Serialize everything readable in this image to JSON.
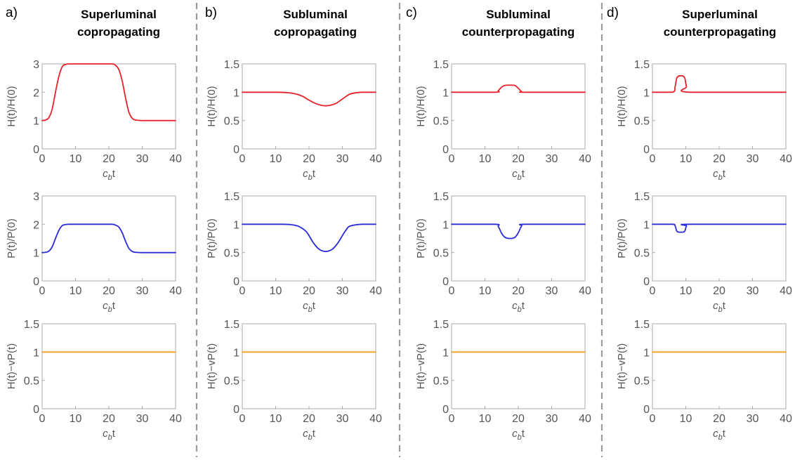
{
  "xlabel": {
    "c": "c",
    "b": "b",
    "t": "t"
  },
  "colors": {
    "H": "#e8212a",
    "P": "#2a2ad8",
    "C": "#f5a020",
    "frame": "#aaaaaa",
    "divider": "#999999"
  },
  "panels": [
    {
      "label": "a)",
      "title_line1": "Superluminal",
      "title_line2": "copropagating",
      "charts": [
        {
          "type": "line",
          "ylabel": "H(t)/H(0)",
          "xlim": [
            0,
            40
          ],
          "ylim": [
            0,
            3
          ],
          "yticks": [
            0,
            1,
            2,
            3
          ],
          "ytick_labels": [
            "0",
            "1",
            "2",
            "3"
          ],
          "xticks": [
            0,
            10,
            20,
            30,
            40
          ],
          "xtick_labels": [
            "0",
            "10",
            "20",
            "30",
            "40"
          ],
          "series": [
            {
              "color": "H",
              "x": [
                0,
                1,
                2,
                3,
                4,
                5,
                6,
                7,
                8,
                10,
                14,
                18,
                21,
                22,
                23,
                24,
                25,
                26,
                27,
                28,
                30,
                35,
                40
              ],
              "y": [
                1.0,
                1.02,
                1.1,
                1.4,
                2.0,
                2.55,
                2.9,
                2.98,
                3.0,
                3.0,
                3.0,
                3.0,
                3.0,
                2.95,
                2.8,
                2.4,
                1.8,
                1.3,
                1.08,
                1.02,
                1.0,
                1.0,
                1.0
              ]
            }
          ]
        },
        {
          "type": "line",
          "ylabel": "P(t)/P(0)",
          "xlim": [
            0,
            40
          ],
          "ylim": [
            0,
            3
          ],
          "yticks": [
            0,
            1,
            2,
            3
          ],
          "ytick_labels": [
            "0",
            "1",
            "2",
            "3"
          ],
          "xticks": [
            0,
            10,
            20,
            30,
            40
          ],
          "xtick_labels": [
            "0",
            "10",
            "20",
            "30",
            "40"
          ],
          "series": [
            {
              "color": "P",
              "x": [
                0,
                1,
                2,
                3,
                4,
                5,
                6,
                7,
                8,
                10,
                14,
                18,
                21,
                22,
                23,
                24,
                25,
                26,
                27,
                28,
                30,
                35,
                40
              ],
              "y": [
                1.0,
                1.01,
                1.05,
                1.2,
                1.5,
                1.78,
                1.95,
                1.99,
                2.0,
                2.0,
                2.0,
                2.0,
                2.0,
                1.97,
                1.9,
                1.7,
                1.4,
                1.15,
                1.04,
                1.01,
                1.0,
                1.0,
                1.0
              ]
            }
          ]
        },
        {
          "type": "line",
          "ylabel": "H(t)−vP(t)",
          "xlim": [
            0,
            40
          ],
          "ylim": [
            0,
            1.5
          ],
          "yticks": [
            0,
            0.5,
            1,
            1.5
          ],
          "ytick_labels": [
            "0",
            "0.5",
            "1",
            "1.5"
          ],
          "xticks": [
            0,
            10,
            20,
            30,
            40
          ],
          "xtick_labels": [
            "0",
            "10",
            "20",
            "30",
            "40"
          ],
          "series": [
            {
              "color": "C",
              "x": [
                0,
                40
              ],
              "y": [
                1,
                1
              ]
            }
          ]
        }
      ]
    },
    {
      "label": "b)",
      "title_line1": "Subluminal",
      "title_line2": "copropagating",
      "charts": [
        {
          "type": "line",
          "ylabel": "H(t)/H(0)",
          "xlim": [
            0,
            40
          ],
          "ylim": [
            0,
            1.5
          ],
          "yticks": [
            0,
            0.5,
            1,
            1.5
          ],
          "ytick_labels": [
            "0",
            "0.5",
            "1",
            "1.5"
          ],
          "xticks": [
            0,
            10,
            20,
            30,
            40
          ],
          "xtick_labels": [
            "0",
            "10",
            "20",
            "30",
            "40"
          ],
          "series": [
            {
              "color": "H",
              "x": [
                0,
                10,
                14,
                16,
                18,
                20,
                22,
                24,
                25,
                26,
                28,
                30,
                32,
                34,
                36,
                40
              ],
              "y": [
                1.0,
                1.0,
                0.99,
                0.97,
                0.93,
                0.86,
                0.8,
                0.765,
                0.76,
                0.765,
                0.8,
                0.88,
                0.96,
                0.99,
                1.0,
                1.0
              ]
            }
          ]
        },
        {
          "type": "line",
          "ylabel": "P(t)/P(0)",
          "xlim": [
            0,
            40
          ],
          "ylim": [
            0,
            1.5
          ],
          "yticks": [
            0,
            0.5,
            1,
            1.5
          ],
          "ytick_labels": [
            "0",
            "0.5",
            "1",
            "1.5"
          ],
          "xticks": [
            0,
            10,
            20,
            30,
            40
          ],
          "xtick_labels": [
            "0",
            "10",
            "20",
            "30",
            "40"
          ],
          "series": [
            {
              "color": "P",
              "x": [
                0,
                12,
                15,
                17,
                19,
                20,
                21,
                22,
                23,
                24,
                25,
                26,
                27,
                28,
                29,
                30,
                31,
                32,
                34,
                36,
                40
              ],
              "y": [
                1.0,
                1.0,
                0.99,
                0.96,
                0.88,
                0.8,
                0.7,
                0.62,
                0.56,
                0.53,
                0.52,
                0.53,
                0.56,
                0.62,
                0.7,
                0.8,
                0.89,
                0.96,
                0.99,
                1.0,
                1.0
              ]
            }
          ]
        },
        {
          "type": "line",
          "ylabel": "H(t)−vP(t)",
          "xlim": [
            0,
            40
          ],
          "ylim": [
            0,
            1.5
          ],
          "yticks": [
            0,
            0.5,
            1,
            1.5
          ],
          "ytick_labels": [
            "0",
            "0.5",
            "1",
            "1.5"
          ],
          "xticks": [
            0,
            10,
            20,
            30,
            40
          ],
          "xtick_labels": [
            "0",
            "10",
            "20",
            "30",
            "40"
          ],
          "series": [
            {
              "color": "C",
              "x": [
                0,
                40
              ],
              "y": [
                1,
                1
              ]
            }
          ]
        }
      ]
    },
    {
      "label": "c)",
      "title_line1": "Subluminal",
      "title_line2": "counterpropagating",
      "charts": [
        {
          "type": "line",
          "ylabel": "H(t)/H(0)",
          "xlim": [
            0,
            40
          ],
          "ylim": [
            0,
            1.5
          ],
          "yticks": [
            0,
            0.5,
            1,
            1.5
          ],
          "ytick_labels": [
            "0",
            "0.5",
            "1",
            "1.5"
          ],
          "xticks": [
            0,
            10,
            20,
            30,
            40
          ],
          "xtick_labels": [
            "0",
            "10",
            "20",
            "30",
            "40"
          ],
          "series": [
            {
              "color": "H",
              "x": [
                0,
                13,
                14,
                15,
                16,
                17,
                18,
                19,
                20,
                21,
                22,
                40
              ],
              "y": [
                1.0,
                1.0,
                1.03,
                1.09,
                1.12,
                1.125,
                1.125,
                1.12,
                1.07,
                1.01,
                1.0,
                1.0
              ]
            }
          ]
        },
        {
          "type": "line",
          "ylabel": "P(t)/P(0)",
          "xlim": [
            0,
            40
          ],
          "ylim": [
            0,
            1.5
          ],
          "yticks": [
            0,
            0.5,
            1,
            1.5
          ],
          "ytick_labels": [
            "0",
            "0.5",
            "1",
            "1.5"
          ],
          "xticks": [
            0,
            10,
            20,
            30,
            40
          ],
          "xtick_labels": [
            "0",
            "10",
            "20",
            "30",
            "40"
          ],
          "series": [
            {
              "color": "P",
              "x": [
                0,
                13,
                14,
                15,
                16,
                17,
                18,
                19,
                20,
                21,
                22,
                40
              ],
              "y": [
                1.0,
                1.0,
                0.96,
                0.84,
                0.77,
                0.75,
                0.75,
                0.77,
                0.85,
                0.97,
                1.0,
                1.0
              ]
            }
          ]
        },
        {
          "type": "line",
          "ylabel": "H(t)−vP(t)",
          "xlim": [
            0,
            40
          ],
          "ylim": [
            0,
            1.5
          ],
          "yticks": [
            0,
            0.5,
            1,
            1.5
          ],
          "ytick_labels": [
            "0",
            "0.5",
            "1",
            "1.5"
          ],
          "xticks": [
            0,
            10,
            20,
            30,
            40
          ],
          "xtick_labels": [
            "0",
            "10",
            "20",
            "30",
            "40"
          ],
          "series": [
            {
              "color": "C",
              "x": [
                0,
                40
              ],
              "y": [
                1,
                1
              ]
            }
          ]
        }
      ]
    },
    {
      "label": "d)",
      "title_line1": "Superluminal",
      "title_line2": "counterpropagating",
      "charts": [
        {
          "type": "line",
          "ylabel": "H(t)/H(0)",
          "xlim": [
            0,
            40
          ],
          "ylim": [
            0,
            1.5
          ],
          "yticks": [
            0,
            0.5,
            1,
            1.5
          ],
          "ytick_labels": [
            "0",
            "0.5",
            "1",
            "1.5"
          ],
          "xticks": [
            0,
            10,
            20,
            30,
            40
          ],
          "xtick_labels": [
            "0",
            "10",
            "20",
            "30",
            "40"
          ],
          "series": [
            {
              "color": "H",
              "x": [
                0,
                6,
                6.8,
                7.3,
                8,
                9,
                9.7,
                10.2,
                11,
                40
              ],
              "y": [
                1.0,
                1.0,
                1.1,
                1.25,
                1.29,
                1.29,
                1.25,
                1.1,
                1.0,
                1.0
              ]
            }
          ]
        },
        {
          "type": "line",
          "ylabel": "P(t)/P(0)",
          "xlim": [
            0,
            40
          ],
          "ylim": [
            0,
            1.5
          ],
          "yticks": [
            0,
            0.5,
            1,
            1.5
          ],
          "ytick_labels": [
            "0",
            "0.5",
            "1",
            "1.5"
          ],
          "xticks": [
            0,
            10,
            20,
            30,
            40
          ],
          "xtick_labels": [
            "0",
            "10",
            "20",
            "30",
            "40"
          ],
          "series": [
            {
              "color": "P",
              "x": [
                0,
                6,
                6.8,
                7.3,
                8,
                9,
                9.7,
                10.2,
                11,
                40
              ],
              "y": [
                1.0,
                1.0,
                0.97,
                0.88,
                0.86,
                0.86,
                0.88,
                0.97,
                1.0,
                1.0
              ]
            }
          ]
        },
        {
          "type": "line",
          "ylabel": "H(t)−vP(t)",
          "xlim": [
            0,
            40
          ],
          "ylim": [
            0,
            1.5
          ],
          "yticks": [
            0,
            0.5,
            1,
            1.5
          ],
          "ytick_labels": [
            "0",
            "0.5",
            "1",
            "1.5"
          ],
          "xticks": [
            0,
            10,
            20,
            30,
            40
          ],
          "xtick_labels": [
            "0",
            "10",
            "20",
            "30",
            "40"
          ],
          "series": [
            {
              "color": "C",
              "x": [
                0,
                40
              ],
              "y": [
                1,
                1
              ]
            }
          ]
        }
      ]
    }
  ]
}
